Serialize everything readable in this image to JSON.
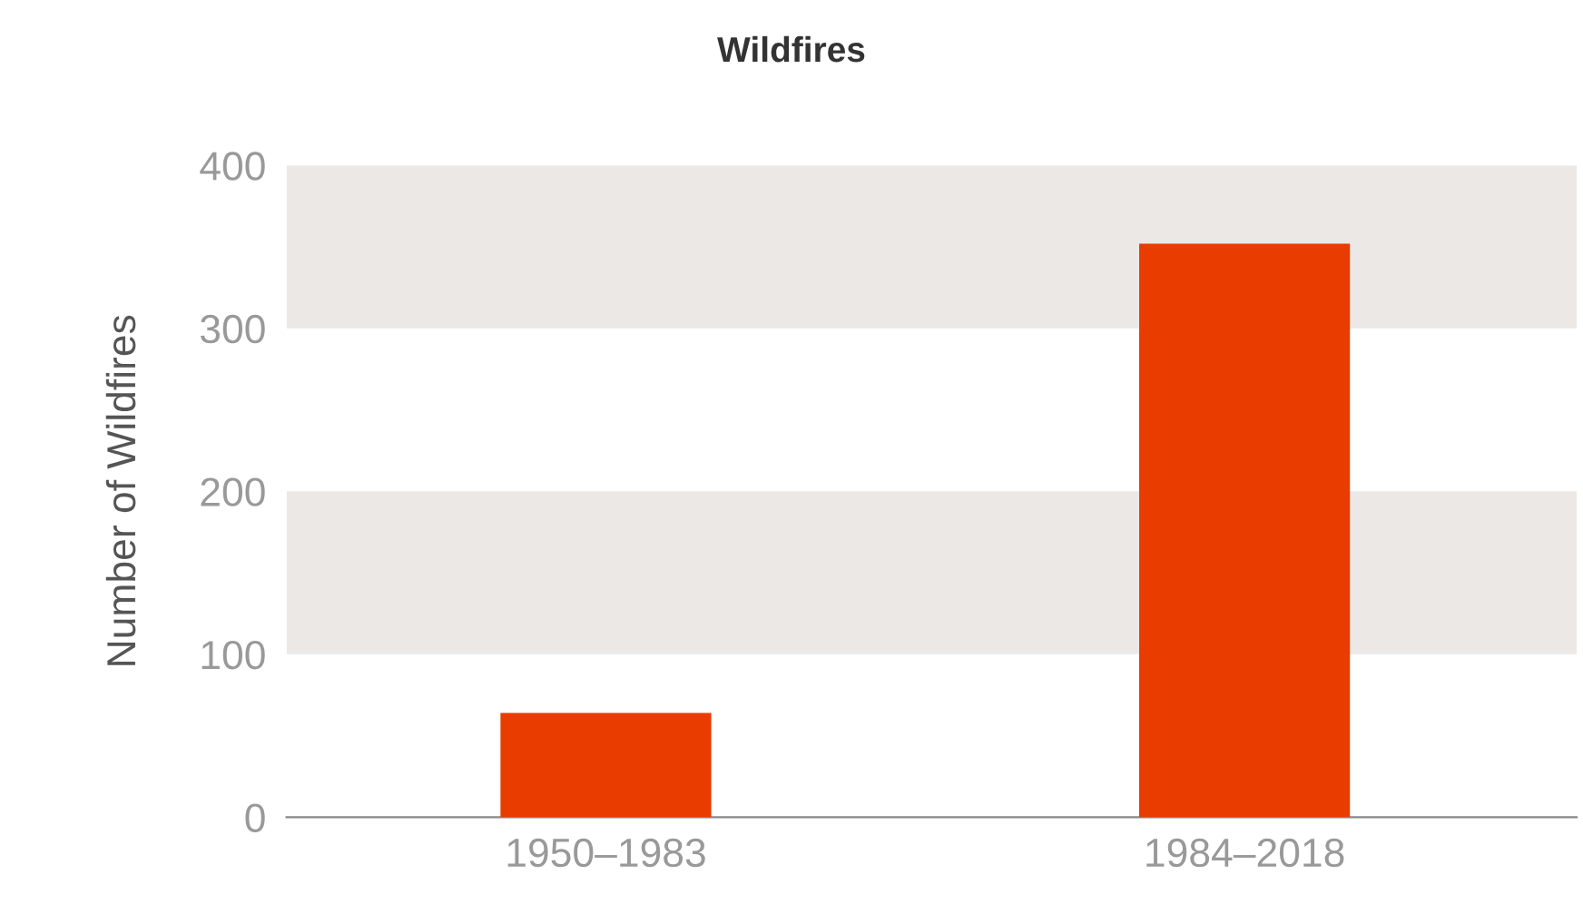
{
  "chart_data": {
    "type": "bar",
    "title": "Wildfires",
    "ylabel": "Number of Wildfires",
    "categories": [
      "1950–1983",
      "1984–2018"
    ],
    "values": [
      64,
      352
    ],
    "color": "#e83c00",
    "ylim": [
      0,
      400
    ],
    "yticks": [
      0,
      100,
      200,
      300,
      400
    ],
    "grid": false,
    "bands": [
      {
        "axis": "y",
        "from": 100,
        "to": 200,
        "color": "#ebe8e6"
      },
      {
        "axis": "y",
        "from": 300,
        "to": 400,
        "color": "#ebe8e6"
      }
    ]
  }
}
